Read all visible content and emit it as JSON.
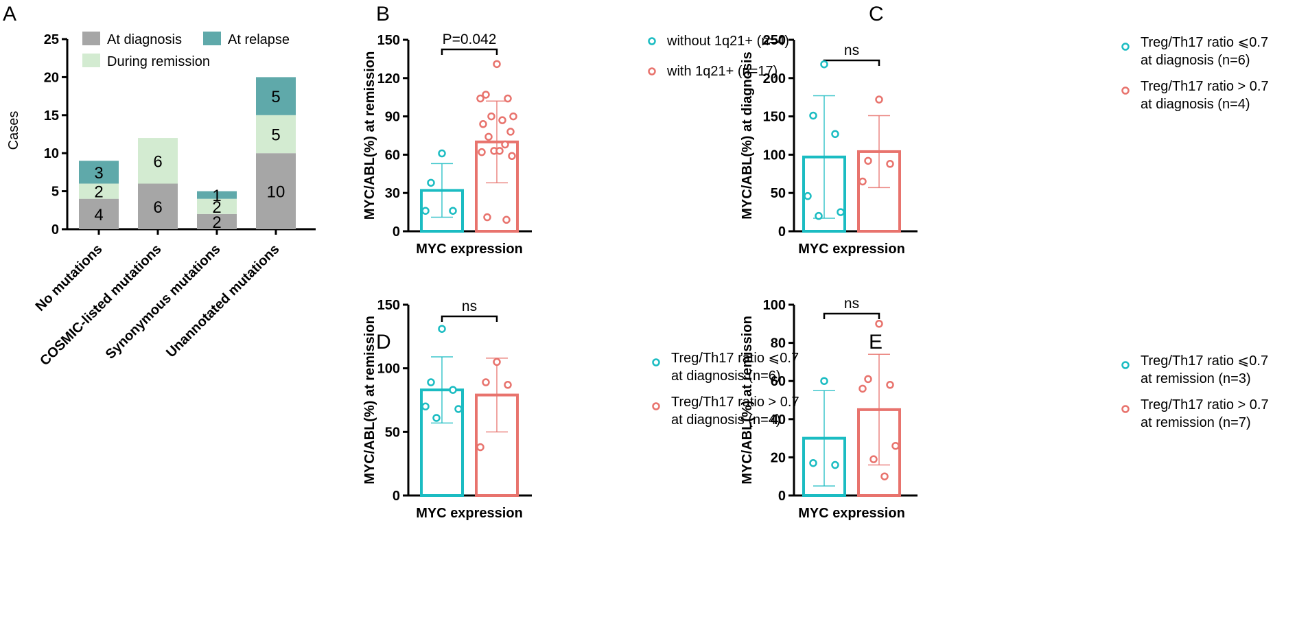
{
  "chart_data": [
    {
      "panel": "A",
      "type": "bar",
      "stacked": true,
      "ylabel": "Cases",
      "ylim": [
        0,
        25
      ],
      "yticks": [
        "0",
        "5",
        "10",
        "15",
        "20",
        "25"
      ],
      "categories": [
        "No mutations",
        "COSMIC-listed mutations",
        "Synonymous mutations",
        "Unannotated mutations"
      ],
      "series": [
        {
          "name": "At diagnosis",
          "color": "#a6a6a6",
          "values": [
            4,
            6,
            2,
            10
          ],
          "labels": [
            "4",
            "6",
            "2",
            "10"
          ]
        },
        {
          "name": "During remission",
          "color": "#d3ebd1",
          "values": [
            2,
            6,
            2,
            5
          ],
          "labels": [
            "2",
            "6",
            "2",
            "5"
          ]
        },
        {
          "name": "At relapse",
          "color": "#5fa9aa",
          "values": [
            3,
            0,
            1,
            5
          ],
          "labels": [
            "3",
            "",
            "1",
            "5"
          ]
        }
      ]
    },
    {
      "panel": "B",
      "type": "bar",
      "xlabel": "MYC expression",
      "ylabel": "MYC/ABL(%) at remission",
      "ylim": [
        0,
        150
      ],
      "yticks": [
        "0",
        "30",
        "60",
        "90",
        "120",
        "150"
      ],
      "significance": "P=0.042",
      "groups": [
        {
          "legend": [
            "without 1q21+ (n=4)"
          ],
          "color": "#1bbcc2",
          "mean": 32,
          "sd": 21,
          "points": [
            61,
            38,
            16,
            16
          ]
        },
        {
          "legend": [
            "with 1q21+ (n=17)"
          ],
          "color": "#e8736d",
          "mean": 70,
          "sd": 32,
          "points": [
            131,
            107,
            104,
            104,
            90,
            90,
            87,
            84,
            78,
            74,
            68,
            63,
            63,
            62,
            59,
            11,
            9
          ]
        }
      ]
    },
    {
      "panel": "C",
      "type": "bar",
      "xlabel": "MYC expression",
      "ylabel": "MYC/ABL(%) at diagnosis",
      "ylim": [
        0,
        250
      ],
      "yticks": [
        "0",
        "50",
        "100",
        "150",
        "200",
        "250"
      ],
      "significance": "ns",
      "groups": [
        {
          "legend": [
            "Treg/Th17 ratio ⩽0.7",
            "at diagnosis (n=6)"
          ],
          "color": "#1bbcc2",
          "mean": 97,
          "sd": 80,
          "points": [
            218,
            151,
            127,
            46,
            25,
            20
          ]
        },
        {
          "legend": [
            "Treg/Th17 ratio > 0.7",
            "at diagnosis (n=4)"
          ],
          "color": "#e8736d",
          "mean": 104,
          "sd": 47,
          "points": [
            172,
            92,
            88,
            65
          ]
        }
      ]
    },
    {
      "panel": "D",
      "type": "bar",
      "xlabel": "MYC expression",
      "ylabel": "MYC/ABL(%) at remission",
      "ylim": [
        0,
        150
      ],
      "yticks": [
        "0",
        "50",
        "100",
        "150"
      ],
      "significance": "ns",
      "groups": [
        {
          "legend": [
            "Treg/Th17 ratio ⩽0.7",
            "at diagnosis (n=6)"
          ],
          "color": "#1bbcc2",
          "mean": 83,
          "sd": 26,
          "points": [
            131,
            89,
            83,
            70,
            68,
            61
          ]
        },
        {
          "legend": [
            "Treg/Th17 ratio > 0.7",
            "at diagnosis (n=4)"
          ],
          "color": "#e8736d",
          "mean": 79,
          "sd": 29,
          "points": [
            105,
            89,
            87,
            38
          ]
        }
      ]
    },
    {
      "panel": "E",
      "type": "bar",
      "xlabel": "MYC expression",
      "ylabel": "MYC/ABL(%) at remission",
      "ylim": [
        0,
        100
      ],
      "yticks": [
        "0",
        "20",
        "40",
        "60",
        "80",
        "100"
      ],
      "significance": "ns",
      "groups": [
        {
          "legend": [
            "Treg/Th17 ratio ⩽0.7",
            "at remission (n=3)"
          ],
          "color": "#1bbcc2",
          "mean": 30,
          "sd": 25,
          "points": [
            60,
            17,
            16
          ]
        },
        {
          "legend": [
            "Treg/Th17 ratio > 0.7",
            "at remission (n=7)"
          ],
          "color": "#e8736d",
          "mean": 45,
          "sd": 29,
          "points": [
            90,
            61,
            58,
            56,
            26,
            19,
            10
          ]
        }
      ]
    }
  ]
}
